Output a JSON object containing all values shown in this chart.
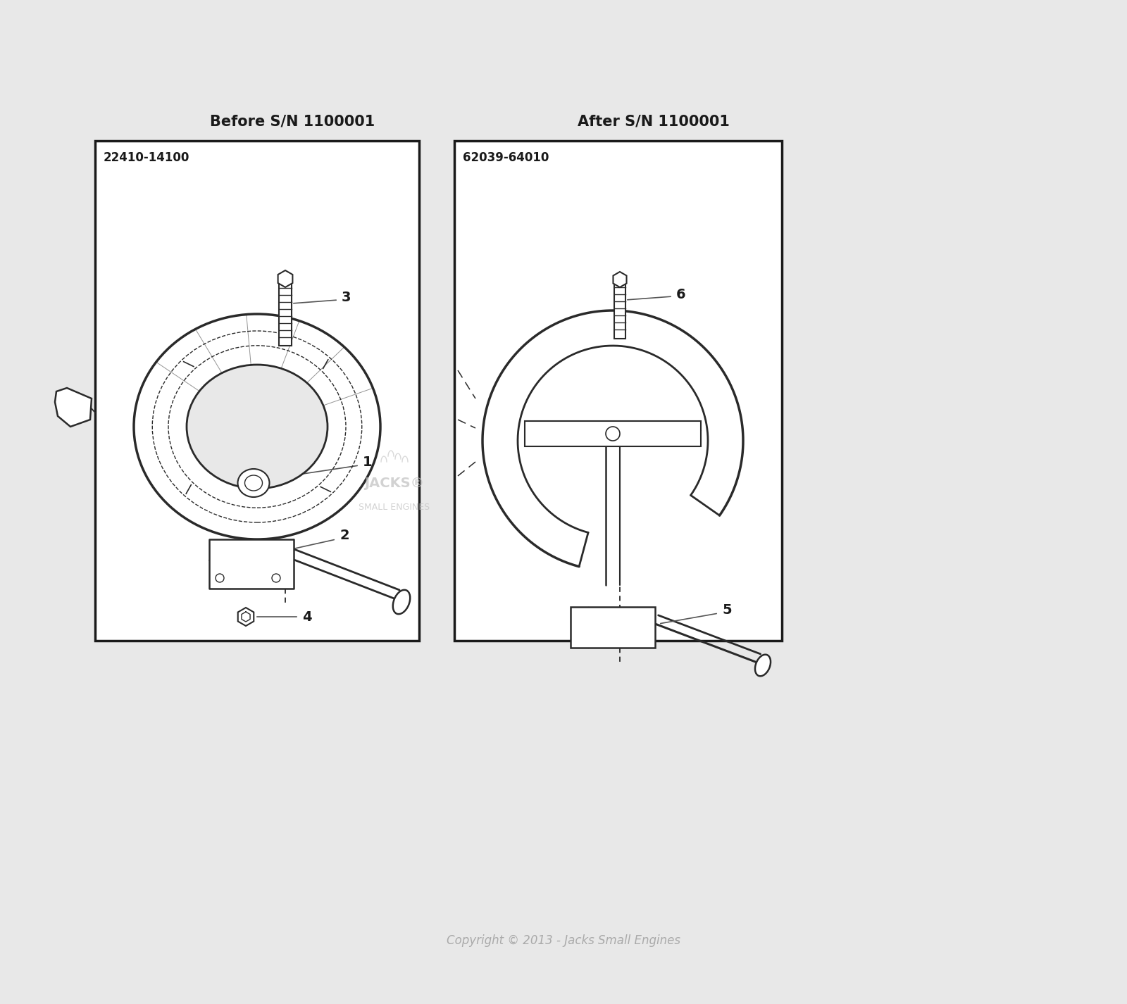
{
  "bg_color": "#e8e8e8",
  "fig_bg": "#e8e8e8",
  "title_before": "Before S/N 1100001",
  "title_after": "After S/N 1100001",
  "part_number_before": "22410-14100",
  "part_number_after": "62039-64010",
  "copyright": "Copyright © 2013 - Jacks Small Engines",
  "box_color": "#1a1a1a",
  "line_color": "#2a2a2a",
  "text_color": "#1a1a1a",
  "watermark_color": "#c0c0c0",
  "label_color": "#555555"
}
